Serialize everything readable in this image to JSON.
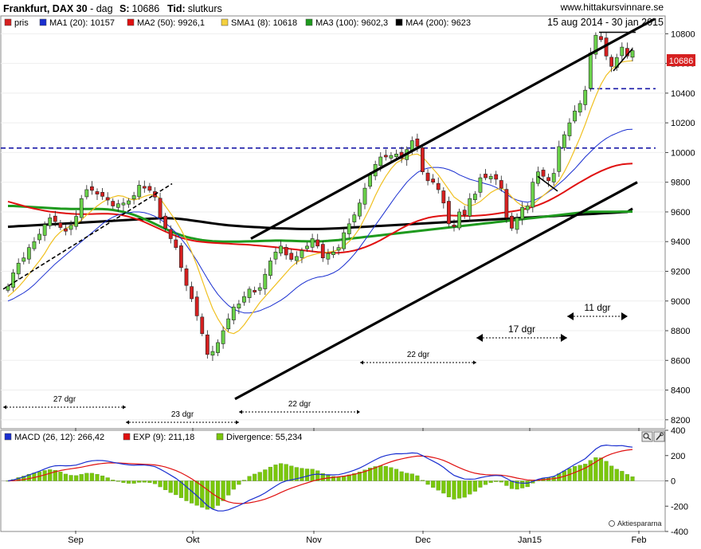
{
  "header": {
    "title": "Frankfurt, DAX 30",
    "separator": " - ",
    "period": "dag",
    "last_label": "S:",
    "last_value": "10686",
    "time_label": "Tid:",
    "time_value": "slutkurs",
    "website": "www.hittakursvinnare.se",
    "date_range": "15 aug 2014 - 30 jan 2015"
  },
  "legend": [
    {
      "label": "pris",
      "color": "#d62020"
    },
    {
      "label": "MA1 (20): 10157",
      "color": "#1a2fd0"
    },
    {
      "label": "MA2 (50): 9926,1",
      "color": "#e01010"
    },
    {
      "label": "SMA1 (8): 10618",
      "color": "#f4d03f"
    },
    {
      "label": "MA3 (100): 9602,3",
      "color": "#1e9a1e"
    },
    {
      "label": "MA4 (200): 9623",
      "color": "#000000"
    }
  ],
  "price_badge": "10686",
  "annotations": [
    "27 dgr",
    "23 dgr",
    "22 dgr",
    "22 dgr",
    "17 dgr",
    "11 dgr"
  ],
  "macd_legend": [
    {
      "label": "MACD (26, 12): 266,42",
      "color": "#1a2fd0"
    },
    {
      "label": "EXP (9): 211,18",
      "color": "#e01010"
    },
    {
      "label": "Divergence: 55,234",
      "color": "#7ac70c"
    }
  ],
  "source_label": "Aktiespararna",
  "icons": [
    "magnifier-icon",
    "wrench-icon"
  ],
  "chart_data": [
    {
      "type": "candlestick",
      "title": "Frankfurt, DAX 30",
      "y_ticks": [
        8200,
        8400,
        8600,
        8800,
        9000,
        9200,
        9400,
        9600,
        9800,
        10000,
        10200,
        10400,
        10600,
        10800
      ],
      "ylim": [
        8140,
        10920
      ],
      "x_labels": [
        "Sep",
        "Okt",
        "Nov",
        "Dec",
        "Jan15",
        "Feb"
      ],
      "close": [
        9100,
        9190,
        9255,
        9290,
        9360,
        9400,
        9450,
        9515,
        9560,
        9535,
        9495,
        9470,
        9510,
        9570,
        9690,
        9750,
        9745,
        9720,
        9705,
        9680,
        9640,
        9655,
        9660,
        9675,
        9710,
        9780,
        9760,
        9745,
        9700,
        9560,
        9490,
        9420,
        9360,
        9225,
        9105,
        9015,
        8900,
        8780,
        8640,
        8660,
        8720,
        8800,
        8880,
        8960,
        8980,
        9030,
        9080,
        9060,
        9090,
        9180,
        9270,
        9330,
        9370,
        9310,
        9280,
        9300,
        9340,
        9370,
        9420,
        9370,
        9290,
        9320,
        9330,
        9360,
        9460,
        9520,
        9580,
        9660,
        9760,
        9850,
        9920,
        9970,
        9970,
        9980,
        9990,
        9960,
        10020,
        10080,
        10040,
        9870,
        9810,
        9800,
        9750,
        9660,
        9520,
        9500,
        9600,
        9580,
        9690,
        9720,
        9830,
        9830,
        9840,
        9820,
        9760,
        9560,
        9490,
        9560,
        9630,
        9640,
        9800,
        9870,
        9840,
        9810,
        9860,
        10040,
        10120,
        10200,
        10280,
        10330,
        10420,
        10670,
        10790,
        10760,
        10650,
        10580,
        10640,
        10710,
        10650,
        10686
      ],
      "ma1_20": [
        9000,
        9015,
        9035,
        9055,
        9080,
        9110,
        9145,
        9180,
        9215,
        9250,
        9280,
        9310,
        9340,
        9370,
        9400,
        9430,
        9460,
        9490,
        9520,
        9545,
        9565,
        9580,
        9590,
        9595,
        9600,
        9600,
        9595,
        9585,
        9570,
        9550,
        9525,
        9495,
        9460,
        9420,
        9375,
        9325,
        9270,
        9210,
        9150,
        9095,
        9045,
        9005,
        8970,
        8945,
        8930,
        8920,
        8920,
        8925,
        8935,
        8950,
        8965,
        8985,
        9005,
        9030,
        9060,
        9090,
        9115,
        9135,
        9150,
        9160,
        9165,
        9175,
        9190,
        9210,
        9240,
        9275,
        9315,
        9360,
        9410,
        9460,
        9510,
        9560,
        9610,
        9660,
        9710,
        9755,
        9800,
        9835,
        9865,
        9885,
        9895,
        9900,
        9900,
        9895,
        9885,
        9870,
        9850,
        9835,
        9820,
        9810,
        9800,
        9790,
        9780,
        9765,
        9745,
        9720,
        9695,
        9680,
        9670,
        9665,
        9675,
        9690,
        9710,
        9735,
        9760,
        9790,
        9820,
        9855,
        9890,
        9930,
        9970,
        10005,
        10040,
        10070,
        10095,
        10115,
        10130,
        10145,
        10155,
        10157
      ],
      "ma2_50": [
        9670,
        9660,
        9650,
        9640,
        9630,
        9622,
        9615,
        9608,
        9602,
        9598,
        9594,
        9590,
        9588,
        9586,
        9585,
        9585,
        9586,
        9587,
        9588,
        9588,
        9586,
        9582,
        9576,
        9568,
        9558,
        9546,
        9532,
        9516,
        9500,
        9484,
        9468,
        9452,
        9438,
        9426,
        9416,
        9408,
        9402,
        9398,
        9395,
        9392,
        9390,
        9388,
        9386,
        9384,
        9382,
        9380,
        9378,
        9375,
        9372,
        9369,
        9366,
        9362,
        9358,
        9354,
        9350,
        9346,
        9342,
        9338,
        9334,
        9330,
        9327,
        9325,
        9324,
        9325,
        9328,
        9333,
        9340,
        9350,
        9362,
        9376,
        9392,
        9410,
        9430,
        9450,
        9470,
        9490,
        9508,
        9524,
        9538,
        9550,
        9560,
        9567,
        9572,
        9575,
        9576,
        9575,
        9574,
        9573,
        9573,
        9574,
        9576,
        9579,
        9583,
        9588,
        9593,
        9598,
        9603,
        9609,
        9616,
        9624,
        9634,
        9646,
        9660,
        9676,
        9694,
        9714,
        9735,
        9757,
        9779,
        9800,
        9820,
        9840,
        9858,
        9875,
        9890,
        9903,
        9913,
        9920,
        9924,
        9926
      ],
      "sma1_8": [
        9030,
        9060,
        9095,
        9135,
        9180,
        9225,
        9270,
        9320,
        9380,
        9430,
        9465,
        9490,
        9505,
        9520,
        9545,
        9580,
        9610,
        9640,
        9665,
        9685,
        9700,
        9710,
        9705,
        9690,
        9680,
        9690,
        9705,
        9715,
        9715,
        9690,
        9640,
        9590,
        9540,
        9480,
        9410,
        9330,
        9240,
        9140,
        9040,
        8950,
        8880,
        8825,
        8790,
        8780,
        8800,
        8840,
        8890,
        8940,
        8990,
        9030,
        9070,
        9110,
        9150,
        9190,
        9230,
        9260,
        9280,
        9300,
        9310,
        9320,
        9325,
        9330,
        9335,
        9345,
        9370,
        9400,
        9440,
        9490,
        9560,
        9630,
        9710,
        9780,
        9840,
        9890,
        9930,
        9950,
        9970,
        9985,
        9990,
        9970,
        9930,
        9890,
        9850,
        9800,
        9750,
        9700,
        9675,
        9650,
        9640,
        9650,
        9670,
        9700,
        9730,
        9750,
        9760,
        9740,
        9700,
        9665,
        9640,
        9635,
        9650,
        9680,
        9710,
        9740,
        9770,
        9810,
        9870,
        9940,
        10020,
        10100,
        10190,
        10290,
        10380,
        10460,
        10520,
        10560,
        10590,
        10610,
        10615,
        10618
      ],
      "ma3_100": [
        9640,
        9640,
        9638,
        9636,
        9634,
        9632,
        9630,
        9628,
        9626,
        9624,
        9622,
        9621,
        9620,
        9620,
        9620,
        9620,
        9620,
        9620,
        9619,
        9617,
        9613,
        9607,
        9600,
        9591,
        9580,
        9567,
        9552,
        9536,
        9519,
        9502,
        9486,
        9470,
        9456,
        9443,
        9432,
        9423,
        9416,
        9410,
        9406,
        9403,
        9401,
        9400,
        9400,
        9400,
        9400,
        9401,
        9402,
        9403,
        9404,
        9405,
        9406,
        9407,
        9407,
        9406,
        9405,
        9404,
        9403,
        9402,
        9402,
        9402,
        9403,
        9405,
        9408,
        9411,
        9415,
        9419,
        9423,
        9427,
        9431,
        9435,
        9439,
        9443,
        9447,
        9451,
        9455,
        9459,
        9463,
        9467,
        9471,
        9475,
        9479,
        9483,
        9487,
        9491,
        9495,
        9499,
        9503,
        9507,
        9511,
        9515,
        9519,
        9523,
        9527,
        9531,
        9535,
        9539,
        9543,
        9547,
        9551,
        9555,
        9559,
        9563,
        9567,
        9571,
        9575,
        9579,
        9583,
        9587,
        9591,
        9595,
        9599,
        9601,
        9601,
        9601,
        9601,
        9601,
        9601,
        9602,
        9602,
        9602
      ],
      "ma4_200": [
        9500,
        9502,
        9504,
        9506,
        9508,
        9510,
        9512,
        9514,
        9516,
        9518,
        9520,
        9522,
        9524,
        9526,
        9528,
        9530,
        9532,
        9534,
        9536,
        9538,
        9540,
        9542,
        9544,
        9546,
        9548,
        9550,
        9552,
        9554,
        9556,
        9558,
        9558,
        9557,
        9555,
        9552,
        9548,
        9543,
        9538,
        9533,
        9528,
        9523,
        9518,
        9514,
        9510,
        9507,
        9504,
        9502,
        9500,
        9498,
        9496,
        9494,
        9492,
        9490,
        9489,
        9488,
        9487,
        9486,
        9485,
        9485,
        9485,
        9485,
        9486,
        9487,
        9488,
        9490,
        9492,
        9494,
        9496,
        9498,
        9500,
        9502,
        9504,
        9506,
        9508,
        9510,
        9512,
        9514,
        9516,
        9518,
        9520,
        9522,
        9524,
        9526,
        9528,
        9530,
        9532,
        9534,
        9536,
        9538,
        9540,
        9542,
        9544,
        9546,
        9548,
        9550,
        9552,
        9554,
        9556,
        9558,
        9560,
        9562,
        9564,
        9566,
        9568,
        9570,
        9572,
        9574,
        9576,
        9578,
        9580,
        9582,
        9584,
        9586,
        9588,
        9590,
        9592,
        9594,
        9596,
        9598,
        9600,
        9623
      ],
      "resistance_level": 10030,
      "support_level": 10430
    },
    {
      "type": "line",
      "title": "MACD (26, 12)",
      "y_ticks": [
        -400,
        -200,
        0,
        200,
        400
      ],
      "ylim": [
        -400,
        400
      ],
      "series": [
        {
          "name": "MACD (26, 12)",
          "color": "#1a2fd0"
        },
        {
          "name": "EXP (9)",
          "color": "#e01010"
        },
        {
          "name": "Divergence",
          "color": "#7ac70c"
        }
      ]
    }
  ]
}
